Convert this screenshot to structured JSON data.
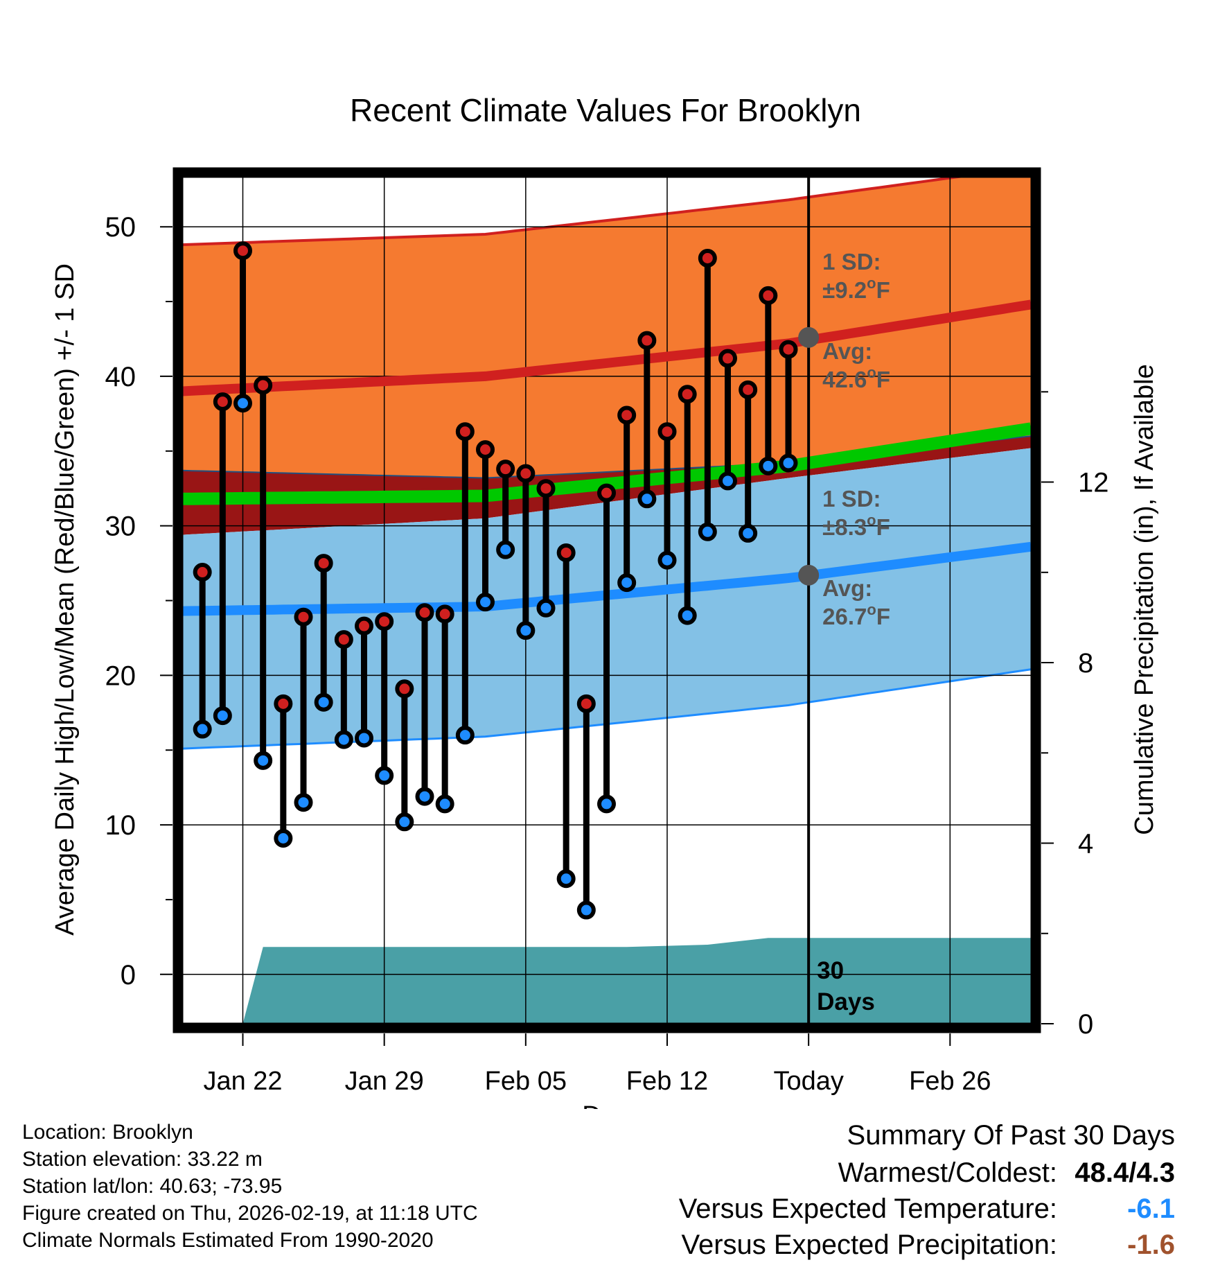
{
  "chart_data": {
    "type": "line",
    "title": "Recent Climate Values For Brooklyn",
    "xlabel": "Day",
    "ylabel": "Average Daily High/Low/Mean (Red/Blue/Green) +/- 1 SD",
    "y2label": "Cumulative Precipitation (in), If Available",
    "x_range_days": [
      -30,
      12
    ],
    "ylim": [
      -3.3,
      53.3
    ],
    "y_ticks": [
      0,
      10,
      20,
      30,
      40,
      50
    ],
    "y2lim": [
      0,
      18.75
    ],
    "y2_ticks": [
      0,
      4,
      8,
      12
    ],
    "x_ticks": [
      {
        "day": -27,
        "label": "Jan 22"
      },
      {
        "day": -20,
        "label": "Jan 29"
      },
      {
        "day": -13,
        "label": "Feb 05"
      },
      {
        "day": -6,
        "label": "Feb 12"
      },
      {
        "day": 1,
        "label": "Today"
      },
      {
        "day": 8,
        "label": "Feb 26"
      }
    ],
    "today_day": 1,
    "daily_highs": [
      26.9,
      38.3,
      48.4,
      39.4,
      18.1,
      23.9,
      27.5,
      22.4,
      23.3,
      23.6,
      19.1,
      24.2,
      24.1,
      36.3,
      35.1,
      33.8,
      33.5,
      32.5,
      28.2,
      18.1,
      32.2,
      37.4,
      42.4,
      36.3,
      38.8,
      47.9,
      41.2,
      39.1,
      45.4,
      41.8
    ],
    "daily_lows": [
      16.4,
      17.3,
      38.2,
      14.3,
      9.1,
      11.5,
      18.2,
      15.7,
      15.8,
      13.3,
      10.2,
      11.9,
      11.4,
      16.0,
      24.9,
      28.4,
      23.0,
      24.5,
      6.4,
      4.3,
      11.4,
      26.2,
      31.8,
      27.7,
      24.0,
      29.6,
      33.0,
      29.5,
      34.0,
      34.2
    ],
    "series": [
      {
        "name": "Normal High",
        "color": "#d0201f",
        "x": [
          -30,
          -15,
          0,
          12
        ],
        "values": [
          39.0,
          40.0,
          42.2,
          44.8
        ]
      },
      {
        "name": "Normal High +1 SD",
        "color": "#d0201f",
        "x": [
          -30,
          -15,
          0,
          12
        ],
        "values": [
          48.8,
          49.5,
          51.8,
          54.0
        ]
      },
      {
        "name": "Normal High -1 SD",
        "color": "#205080",
        "x": [
          -30,
          -15,
          0,
          12
        ],
        "values": [
          33.7,
          33.2,
          34.2,
          36.0
        ]
      },
      {
        "name": "Normal Mean",
        "color": "#00c800",
        "x": [
          -30,
          -15,
          0,
          12
        ],
        "values": [
          31.8,
          32.0,
          34.0,
          36.5
        ]
      },
      {
        "name": "Normal Low",
        "color": "#1e8cff",
        "x": [
          -30,
          -15,
          0,
          12
        ],
        "values": [
          24.3,
          24.6,
          26.5,
          28.6
        ]
      },
      {
        "name": "Normal Low +1 SD",
        "color": "#8b1010",
        "x": [
          -30,
          -15,
          0,
          12
        ],
        "values": [
          29.4,
          30.5,
          33.2,
          35.2
        ]
      },
      {
        "name": "Normal Low -1 SD",
        "color": "#1e8cff",
        "x": [
          -30,
          -15,
          0,
          12
        ],
        "values": [
          15.1,
          15.9,
          18.0,
          20.4
        ]
      },
      {
        "name": "Cumulative Precipitation",
        "color": "#4aa0a6",
        "x": [
          -27,
          -26,
          -8,
          -4,
          -1,
          12
        ],
        "values": [
          0,
          1.7,
          1.7,
          1.75,
          1.9,
          1.9
        ]
      }
    ],
    "annotations": {
      "high_sd_label": "1 SD:",
      "high_sd_value": "±9.2",
      "high_avg_label": "Avg:",
      "high_avg_value": "42.6",
      "high_avg_y": 42.6,
      "low_sd_label": "1 SD:",
      "low_sd_value": "±8.3",
      "low_avg_label": "Avg:",
      "low_avg_value": "26.7",
      "low_avg_y": 26.7,
      "unit_sup": "o",
      "unit": "F",
      "period_line1": "30",
      "period_line2": "Days"
    }
  },
  "station": {
    "location": "Location: Brooklyn",
    "elevation": "Station elevation: 33.22 m",
    "latlon": "Station lat/lon: 40.63; -73.95",
    "created": "Figure created on Thu, 2026-02-19, at 11:18 UTC",
    "normals": "Climate Normals Estimated From 1990-2020"
  },
  "summary": {
    "title": "Summary Of Past 30 Days",
    "warm_cold_label": "Warmest/Coldest:",
    "warm_cold_value": "48.4/4.3",
    "temp_label": "Versus Expected Temperature:",
    "temp_value": "-6.1",
    "temp_color": "#1e8cff",
    "precip_label": "Versus Expected Precipitation:",
    "precip_value": "-1.6",
    "precip_color": "#a0522d"
  }
}
